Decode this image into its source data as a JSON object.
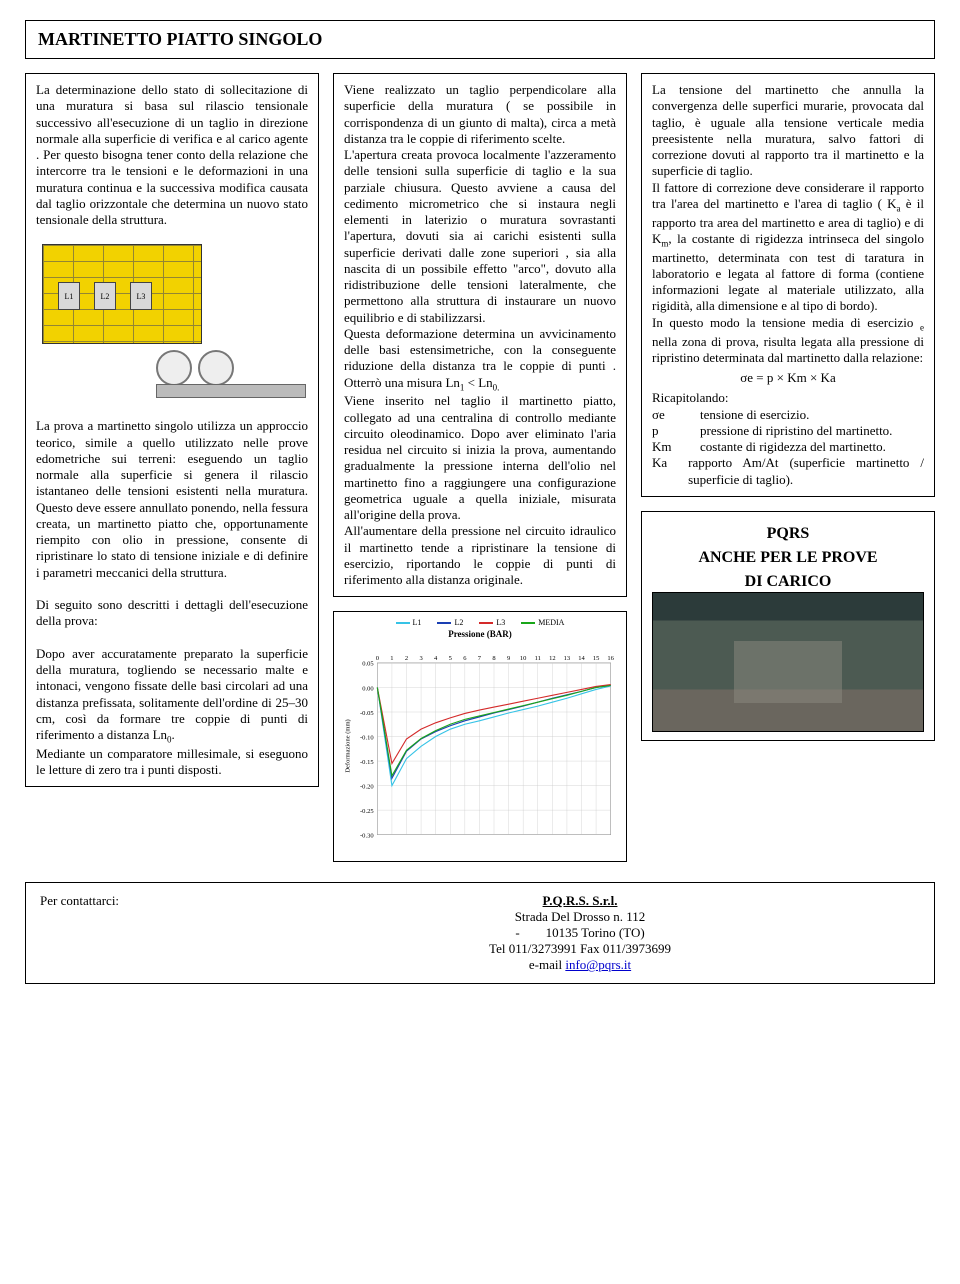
{
  "title": "MARTINETTO PIATTO SINGOLO",
  "col1": {
    "para1": "La determinazione dello stato di sollecitazione di una muratura si basa sul rilascio tensionale successivo all'esecuzione di un taglio in direzione normale alla superficie di verifica e al carico agente . Per questo bisogna tener conto della relazione che intercorre tra le tensioni e le deformazioni in una muratura continua e la successiva modifica causata dal taglio orizzontale che determina un nuovo stato tensionale della struttura.",
    "plates": [
      "L1",
      "L2",
      "L3"
    ],
    "para2": "La prova a martinetto singolo utilizza un approccio teorico, simile a quello utilizzato nelle prove edometriche sui terreni: eseguendo un taglio normale alla superficie si genera il rilascio istantaneo delle tensioni esistenti nella muratura. Questo deve essere annullato ponendo, nella fessura creata, un martinetto piatto che, opportunamente riempito con olio in pressione, consente di ripristinare lo stato di tensione iniziale e di definire i parametri meccanici della struttura.",
    "para3": "Di seguito sono descritti i dettagli dell'esecuzione della prova:",
    "para4": "Dopo aver accuratamente preparato la superficie della muratura, togliendo se necessario malte e intonaci, vengono fissate delle basi circolari ad una distanza prefissata, solitamente dell'ordine di 25–30 cm, così da formare tre coppie di punti di riferimento a distanza Ln",
    "ln0": "0",
    "para4b": ".",
    "para5": "Mediante un comparatore millesimale, si eseguono le letture di zero tra i punti disposti."
  },
  "col2": {
    "text_a": "Viene realizzato un taglio perpendicolare alla superficie della muratura ( se possibile in corrispondenza di un giunto di malta), circa a metà distanza tra le coppie di riferimento scelte.",
    "text_b": "L'apertura creata provoca localmente l'azzeramento delle tensioni sulla superficie di taglio e la sua parziale chiusura. Questo avviene a causa del cedimento micrometrico che si instaura negli elementi in laterizio o muratura sovrastanti l'apertura, dovuti sia ai carichi esistenti sulla superficie derivati dalle zone superiori , sia alla nascita di un possibile effetto \"arco\", dovuto alla ridistribuzione delle tensioni lateralmente, che permettono alla struttura di instaurare un nuovo equilibrio e di stabilizzarsi.",
    "text_c": "Questa deformazione determina un avvicinamento delle basi estensimetriche, con la conseguente riduzione della distanza tra le coppie di punti . Otterrò una misura Ln",
    "ln1": "1",
    "text_c2": " < Ln",
    "ln0": "0.",
    "text_d": "Viene inserito nel taglio il martinetto piatto, collegato ad una centralina di controllo mediante circuito oleodinamico. Dopo aver eliminato l'aria residua nel circuito si inizia la prova, aumentando gradualmente la pressione interna dell'olio nel martinetto fino a raggiungere una configurazione geometrica uguale a quella iniziale, misurata all'origine della prova.",
    "text_e": "All'aumentare della pressione nel circuito idraulico il martinetto tende a ripristinare la tensione di esercizio, riportando le coppie di punti di riferimento alla distanza originale."
  },
  "chart": {
    "title": "Pressione (BAR)",
    "legend": [
      {
        "label": "L1",
        "color": "#36c3e6"
      },
      {
        "label": "L2",
        "color": "#1a3fb3"
      },
      {
        "label": "L3",
        "color": "#d42a2a"
      },
      {
        "label": "MEDIA",
        "color": "#19a619"
      }
    ],
    "x_ticks": [
      "0",
      "0",
      "1",
      "2",
      "3",
      "4",
      "5",
      "6",
      "7",
      "8",
      "9",
      "10",
      "11",
      "12",
      "13",
      "14",
      "15",
      "16"
    ],
    "y_ticks": [
      "0.05",
      "0.00",
      "-0.05",
      "-0.10",
      "-0.15",
      "-0.20",
      "-0.25",
      "-0.30"
    ],
    "ylabel": "Deformazione (mm)",
    "xlim": [
      0,
      16
    ],
    "ylim": [
      -0.3,
      0.05
    ],
    "background": "#ffffff",
    "grid_color": "#c9c9c9",
    "series": {
      "L1": [
        0,
        -0.2,
        -0.145,
        -0.12,
        -0.1,
        -0.085,
        -0.075,
        -0.068,
        -0.06,
        -0.052,
        -0.045,
        -0.038,
        -0.03,
        -0.022,
        -0.013,
        -0.004,
        0.003
      ],
      "L2": [
        0,
        -0.185,
        -0.13,
        -0.105,
        -0.09,
        -0.078,
        -0.068,
        -0.06,
        -0.052,
        -0.045,
        -0.038,
        -0.03,
        -0.022,
        -0.015,
        -0.008,
        0.0,
        0.004
      ],
      "L3": [
        0,
        -0.155,
        -0.105,
        -0.085,
        -0.072,
        -0.062,
        -0.053,
        -0.046,
        -0.04,
        -0.034,
        -0.028,
        -0.022,
        -0.016,
        -0.01,
        -0.004,
        0.002,
        0.006
      ],
      "MEDIA": [
        0,
        -0.18,
        -0.128,
        -0.104,
        -0.088,
        -0.075,
        -0.065,
        -0.058,
        -0.051,
        -0.044,
        -0.037,
        -0.03,
        -0.023,
        -0.016,
        -0.008,
        0.0,
        0.004
      ]
    }
  },
  "col3": {
    "para1": "La tensione del martinetto che annulla la convergenza delle superfici murarie, provocata dal taglio, è uguale alla tensione verticale media preesistente nella muratura, salvo fattori di correzione dovuti al rapporto tra il martinetto e la superficie di taglio.",
    "para2a": "Il fattore di correzione deve considerare il rapporto tra l'area del martinetto e l'area di taglio ( K",
    "ka": "a",
    "para2b": " è il rapporto tra area del martinetto e area di taglio) e di K",
    "km": "m",
    "para2c": ", la costante di rigidezza intrinseca del singolo martinetto, determinata con test di taratura in laboratorio e legata al fattore di forma (contiene informazioni legate al materiale utilizzato, alla rigidità, alla dimensione e al tipo di bordo).",
    "para3a": "In questo modo la tensione media di esercizio ",
    "sub_e": "e",
    "para3b": " nella zona di prova, risulta legata alla pressione di ripristino determinata dal martinetto dalla relazione:",
    "formula": "σe  =  p  ×  Km  ×  Ka",
    "recap": "Ricapitolando:",
    "def1_sym": "σe",
    "def1_txt": "tensione di esercizio.",
    "def2_sym": "p",
    "def2_txt": "pressione di ripristino del martinetto.",
    "def3_sym": "Km",
    "def3_txt": "costante di rigidezza del martinetto.",
    "def4_sym": "Ka",
    "def4_txt": "rapporto Am/At (superficie martinetto / superficie di taglio)."
  },
  "promo": {
    "line1": "PQRS",
    "line2": "ANCHE PER LE PROVE",
    "line3": "DI CARICO"
  },
  "footer": {
    "left": "Per contattarci:",
    "name": "P.Q.R.S. S.r.l.",
    "addr1": "Strada Del Drosso n. 112",
    "addr2": "10135 Torino (TO)",
    "tel": "Tel 011/3273991  Fax 011/3973699",
    "email_label": "e-mail ",
    "email": "info@pqrs.it"
  }
}
